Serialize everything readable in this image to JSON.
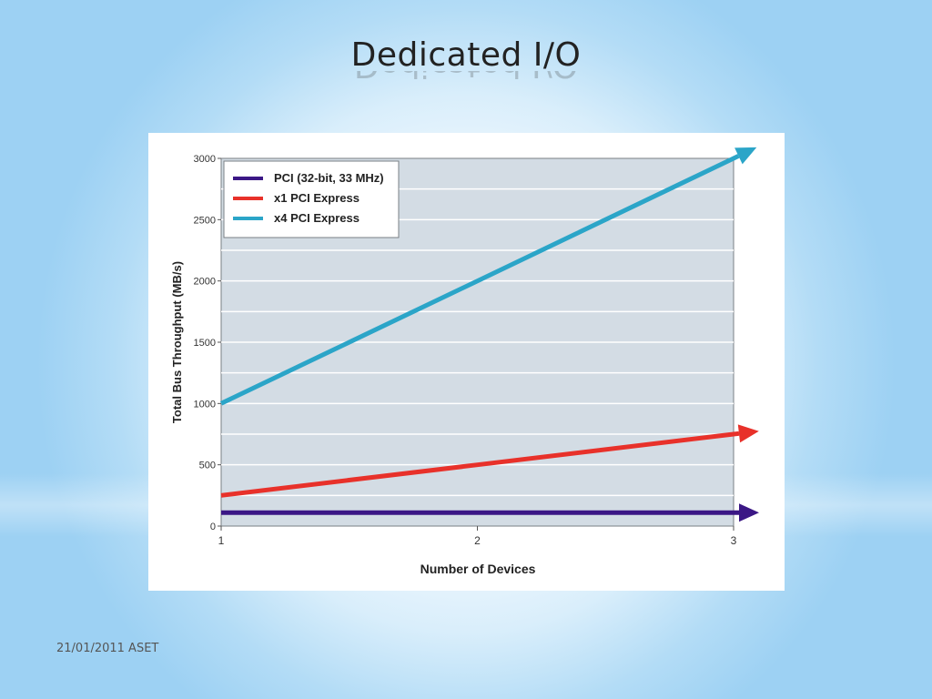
{
  "slide": {
    "title": "Dedicated I/O",
    "footer": "21/01/2011 ASET"
  },
  "chart_data": {
    "type": "line",
    "title": "",
    "xlabel": "Number of Devices",
    "ylabel": "Total Bus Throughput (MB/s)",
    "x": [
      1,
      2,
      3
    ],
    "x_tick_labels": [
      "1",
      "2",
      "3"
    ],
    "xlim": [
      1,
      3
    ],
    "ylim": [
      0,
      3000
    ],
    "y_ticks": [
      0,
      500,
      1000,
      1500,
      2000,
      2500,
      3000
    ],
    "y_tick_labels": [
      "0",
      "500",
      "1000",
      "1500",
      "2000",
      "2500",
      "3000"
    ],
    "grid": true,
    "legend_position": "top-left",
    "plot_background": "#d3dce4",
    "series": [
      {
        "name": "PCI (32-bit, 33 MHz)",
        "color": "#3b1785",
        "values": [
          110,
          110,
          110
        ]
      },
      {
        "name": "x1 PCI Express",
        "color": "#e8312a",
        "values": [
          250,
          500,
          750
        ]
      },
      {
        "name": "x4 PCI Express",
        "color": "#2ba5c8",
        "values": [
          1000,
          2000,
          3000
        ]
      }
    ],
    "annotations": [
      "arrowheads at the right end of each series line"
    ]
  }
}
